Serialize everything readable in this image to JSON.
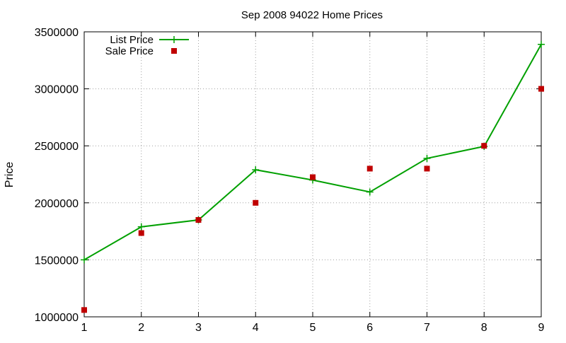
{
  "chart_data": {
    "type": "line",
    "title": "Sep 2008 94022 Home Prices",
    "xlabel": "",
    "ylabel": "Price",
    "x": [
      1,
      2,
      3,
      4,
      5,
      6,
      7,
      8,
      9
    ],
    "xlim": [
      1,
      9
    ],
    "ylim": [
      1000000,
      3500000
    ],
    "xticks": [
      "1",
      "2",
      "3",
      "4",
      "5",
      "6",
      "7",
      "8",
      "9"
    ],
    "yticks": [
      "1000000",
      "1500000",
      "2000000",
      "2500000",
      "3000000",
      "3500000"
    ],
    "grid": true,
    "legend_position": "top-left",
    "series": [
      {
        "name": "List Price",
        "style": "line-with-plus-markers",
        "color": "#00a000",
        "values": [
          1500000,
          1790000,
          1850000,
          2290000,
          2200000,
          2095000,
          2390000,
          2495000,
          3390000
        ]
      },
      {
        "name": "Sale Price",
        "style": "square-markers",
        "color": "#c00000",
        "values": [
          1060000,
          1735000,
          1850000,
          2000000,
          2225000,
          2300000,
          2300000,
          2500000,
          3000000
        ]
      }
    ]
  }
}
